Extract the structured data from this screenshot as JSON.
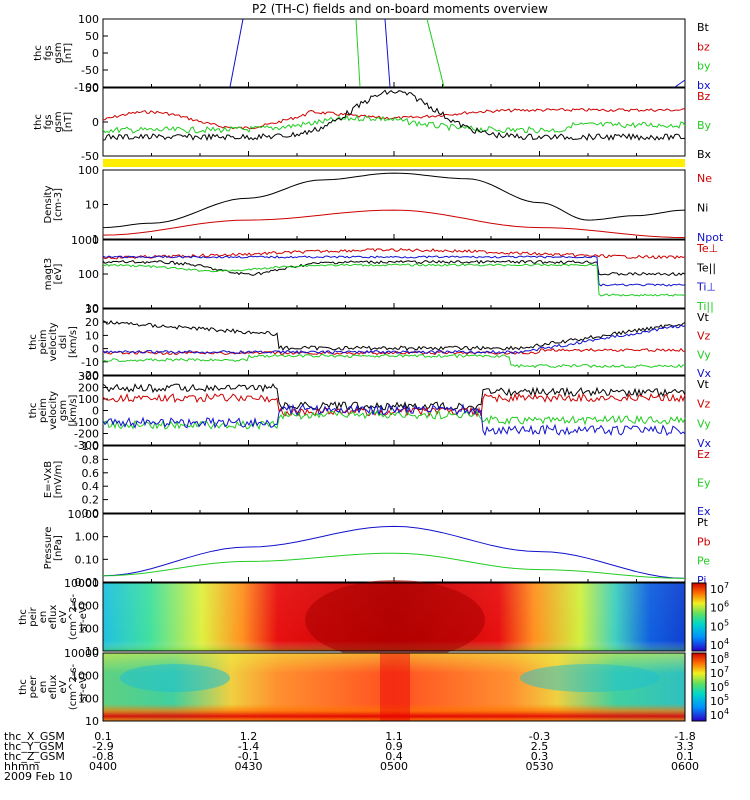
{
  "title": "P2 (TH-C) fields and on-board moments overview",
  "colors": {
    "black": "#000000",
    "red": "#cc0000",
    "green": "#22cc22",
    "blue": "#1111cc",
    "yellow": "#ffee00"
  },
  "chart_data": [
    {
      "type": "line",
      "id": "fgs1",
      "ylabel": [
        "thc",
        "fgs",
        "gsm",
        "[nT]"
      ],
      "ylim": [
        -100,
        100
      ],
      "yticks": [
        "100",
        "50",
        "0",
        "-50",
        "-100"
      ],
      "legend": [
        {
          "name": "Bt",
          "color": "black"
        },
        {
          "name": "bz",
          "color": "red"
        },
        {
          "name": "by",
          "color": "green"
        },
        {
          "name": "bx",
          "color": "blue"
        }
      ]
    },
    {
      "type": "line",
      "id": "fgs2",
      "ylabel": [
        "thc",
        "fgs",
        "gsm",
        "[nT]"
      ],
      "ylim": [
        -75,
        75
      ],
      "yticks": [
        "50",
        "0",
        "-50"
      ],
      "legend": [
        {
          "name": "Bz",
          "color": "red"
        },
        {
          "name": "By",
          "color": "green"
        },
        {
          "name": "Bx",
          "color": "black"
        }
      ]
    },
    {
      "type": "line",
      "id": "density",
      "ylabel": [
        "Density",
        "[cm-3]"
      ],
      "scale": "log",
      "ylim": [
        0.35,
        200
      ],
      "yticks": [
        "100",
        "10",
        "1"
      ],
      "legend": [
        {
          "name": "Ne",
          "color": "red"
        },
        {
          "name": "Ni",
          "color": "black"
        },
        {
          "name": "Npot",
          "color": "blue"
        }
      ],
      "series": [
        {
          "name": "Ni",
          "color": "black",
          "x": [
            "0400",
            "0410",
            "0430",
            "0445",
            "0500",
            "0515",
            "0530",
            "0540",
            "0550",
            "0600"
          ],
          "y": [
            1,
            1.5,
            15,
            80,
            150,
            90,
            10,
            2,
            3,
            5
          ]
        },
        {
          "name": "Ne",
          "color": "red",
          "x": [
            "0400",
            "0430",
            "0500",
            "0530",
            "0600"
          ],
          "y": [
            0.5,
            2,
            5,
            1,
            0.4
          ]
        }
      ]
    },
    {
      "type": "line",
      "id": "temp",
      "ylabel": [
        "magt3",
        "[eV]"
      ],
      "scale": "log",
      "ylim": [
        10,
        1200
      ],
      "yticks": [
        "1000",
        "100",
        "10"
      ],
      "legend": [
        {
          "name": "Te⊥",
          "color": "red"
        },
        {
          "name": "Te||",
          "color": "black"
        },
        {
          "name": "Ti⊥",
          "color": "blue"
        },
        {
          "name": "Ti||",
          "color": "green"
        }
      ]
    },
    {
      "type": "line",
      "id": "vel_dsl",
      "ylabel": [
        "thc",
        "peim",
        "velocity",
        "dsl",
        "[km/s]"
      ],
      "ylim": [
        -20,
        30
      ],
      "yticks": [
        "30",
        "20",
        "10",
        "0",
        "-10",
        "-20"
      ],
      "legend": [
        {
          "name": "Vt",
          "color": "black"
        },
        {
          "name": "Vz",
          "color": "red"
        },
        {
          "name": "Vy",
          "color": "green"
        },
        {
          "name": "Vx",
          "color": "blue"
        }
      ]
    },
    {
      "type": "line",
      "id": "vel_gsm",
      "ylabel": [
        "thc",
        "peim",
        "velocity",
        "gsm",
        "[km/s]"
      ],
      "ylim": [
        -300,
        300
      ],
      "yticks": [
        "300",
        "200",
        "100",
        "0",
        "-100",
        "-200",
        "-300"
      ],
      "legend": [
        {
          "name": "Vt",
          "color": "black"
        },
        {
          "name": "Vz",
          "color": "red"
        },
        {
          "name": "Vy",
          "color": "green"
        },
        {
          "name": "Vx",
          "color": "blue"
        }
      ]
    },
    {
      "type": "line",
      "id": "efield",
      "ylabel": [
        "E=-VxB",
        "[mV/m]"
      ],
      "ylim": [
        0,
        1
      ],
      "yticks": [
        "1.0",
        "0.8",
        "0.6",
        "0.4",
        "0.2",
        "0.0"
      ],
      "legend": [
        {
          "name": "Ez",
          "color": "red"
        },
        {
          "name": "Ey",
          "color": "green"
        },
        {
          "name": "Ex",
          "color": "blue"
        }
      ]
    },
    {
      "type": "line",
      "id": "pressure",
      "ylabel": [
        "Pressure",
        "[nPa]"
      ],
      "scale": "log",
      "ylim": [
        0.01,
        20
      ],
      "yticks": [
        "10.00",
        "1.00",
        "0.10",
        "0.01"
      ],
      "legend": [
        {
          "name": "Pt",
          "color": "black"
        },
        {
          "name": "Pb",
          "color": "red"
        },
        {
          "name": "Pe",
          "color": "green"
        },
        {
          "name": "Pi",
          "color": "blue"
        }
      ],
      "series": [
        {
          "name": "Pi",
          "color": "blue",
          "x": [
            "0400",
            "0430",
            "0500",
            "0530",
            "0600"
          ],
          "y": [
            0.02,
            0.5,
            5,
            0.3,
            0.015
          ]
        },
        {
          "name": "Pe",
          "color": "green",
          "x": [
            "0400",
            "0430",
            "0500",
            "0530",
            "0600"
          ],
          "y": [
            0.02,
            0.1,
            0.25,
            0.04,
            0.015
          ]
        }
      ]
    },
    {
      "type": "heatmap",
      "id": "ion_spec",
      "ylabel": [
        "thc",
        "peir",
        "en",
        "eflux",
        "eV",
        "(cm^2-s-",
        "sr-eV)"
      ],
      "yticks": [
        "10000",
        "1000",
        "100",
        "10"
      ],
      "cbar_ticks": [
        "10^7",
        "10^6",
        "10^5",
        "10^4"
      ]
    },
    {
      "type": "heatmap",
      "id": "ele_spec",
      "ylabel": [
        "thc",
        "peer",
        "en",
        "eflux",
        "eV",
        "(cm^2-s-",
        "sr-eV)"
      ],
      "yticks": [
        "10000",
        "1000",
        "100",
        "10"
      ],
      "cbar_ticks": [
        "10^8",
        "10^7",
        "10^6",
        "10^5",
        "10^4"
      ]
    }
  ],
  "xaxis": {
    "rows": [
      {
        "label": "thc_X_GSM",
        "values": [
          "0.1",
          "1.2",
          "1.1",
          "-0.3",
          "-1.8"
        ]
      },
      {
        "label": "thc_Y_GSM",
        "values": [
          "-2.9",
          "-1.4",
          "0.9",
          "2.5",
          "3.3"
        ]
      },
      {
        "label": "thc_Z_GSM",
        "values": [
          "-0.8",
          "-0.1",
          "0.4",
          "0.3",
          "0.1"
        ]
      },
      {
        "label": "hhmm",
        "values": [
          "0400",
          "0430",
          "0500",
          "0530",
          "0600"
        ]
      }
    ],
    "date": "2009 Feb 10"
  }
}
